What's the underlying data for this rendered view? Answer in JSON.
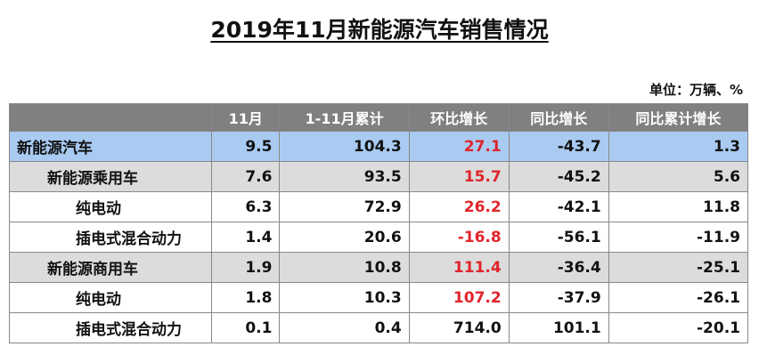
{
  "header": {
    "title": "2019年11月新能源汽车销售情况",
    "unit": "单位：万辆、%"
  },
  "table": {
    "columns": [
      "",
      "11月",
      "1-11月累计",
      "环比增长",
      "同比增长",
      "同比累计增长"
    ],
    "rows": [
      [
        "新能源汽车",
        "9.5",
        "104.3",
        "27.1",
        "-43.7",
        "1.3"
      ],
      [
        "新能源乘用车",
        "7.6",
        "93.5",
        "15.7",
        "-45.2",
        "5.6"
      ],
      [
        "纯电动",
        "6.3",
        "72.9",
        "26.2",
        "-42.1",
        "11.8"
      ],
      [
        "插电式混合动力",
        "1.4",
        "20.6",
        "-16.8",
        "-56.1",
        "-11.9"
      ],
      [
        "新能源商用车",
        "1.9",
        "10.8",
        "111.4",
        "-36.4",
        "-25.1"
      ],
      [
        "纯电动",
        "1.8",
        "10.3",
        "107.2",
        "-37.9",
        "-26.1"
      ],
      [
        "插电式混合动力",
        "0.1",
        "0.4",
        "714.0",
        "101.1",
        "-20.1"
      ]
    ]
  }
}
